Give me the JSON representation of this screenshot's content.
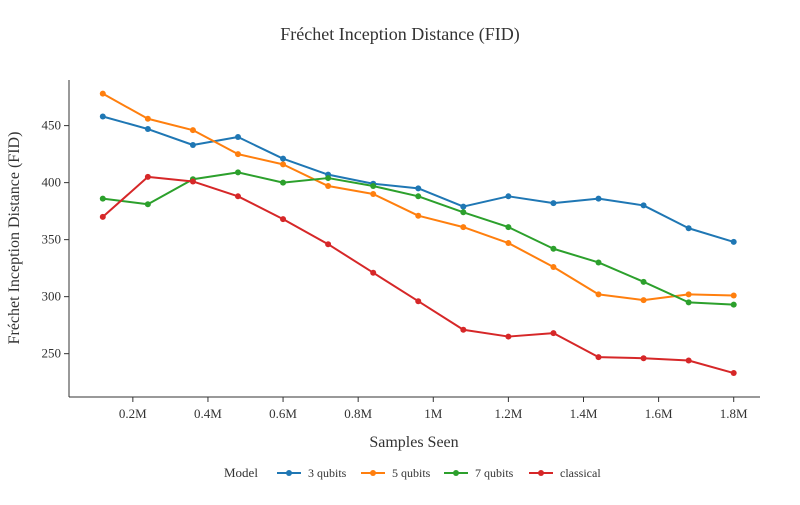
{
  "chart_data": {
    "type": "line",
    "title": "Fréchet Inception Distance (FID)",
    "xlabel": "Samples Seen",
    "ylabel": "Fréchet Inception Distance (FID)",
    "xlim": [
      0.03,
      1.87
    ],
    "ylim": [
      212,
      490
    ],
    "x_ticks": [
      0.2,
      0.4,
      0.6,
      0.8,
      1.0,
      1.2,
      1.4,
      1.6,
      1.8
    ],
    "x_tick_labels": [
      "0.2M",
      "0.4M",
      "0.6M",
      "0.8M",
      "1M",
      "1.2M",
      "1.4M",
      "1.6M",
      "1.8M"
    ],
    "y_ticks": [
      250,
      300,
      350,
      400,
      450
    ],
    "y_tick_labels": [
      "250",
      "300",
      "350",
      "400",
      "450"
    ],
    "x": [
      0.12,
      0.24,
      0.36,
      0.48,
      0.6,
      0.72,
      0.84,
      0.96,
      1.08,
      1.2,
      1.32,
      1.44,
      1.56,
      1.68,
      1.8
    ],
    "legend_title": "Model",
    "legend_position": "bottom",
    "grid": false,
    "series": [
      {
        "name": "3 qubits",
        "color": "#1f77b4",
        "values": [
          458,
          447,
          433,
          440,
          421,
          407,
          399,
          395,
          379,
          388,
          382,
          386,
          380,
          360,
          348
        ]
      },
      {
        "name": "5 qubits",
        "color": "#ff7f0e",
        "values": [
          478,
          456,
          446,
          425,
          416,
          397,
          390,
          371,
          361,
          347,
          326,
          302,
          297,
          302,
          301
        ]
      },
      {
        "name": "7 qubits",
        "color": "#2ca02c",
        "values": [
          386,
          381,
          403,
          409,
          400,
          404,
          397,
          388,
          374,
          361,
          342,
          330,
          313,
          295,
          293
        ]
      },
      {
        "name": "classical",
        "color": "#d62728",
        "values": [
          370,
          405,
          401,
          388,
          368,
          346,
          321,
          296,
          271,
          265,
          268,
          247,
          246,
          244,
          233
        ]
      }
    ]
  }
}
